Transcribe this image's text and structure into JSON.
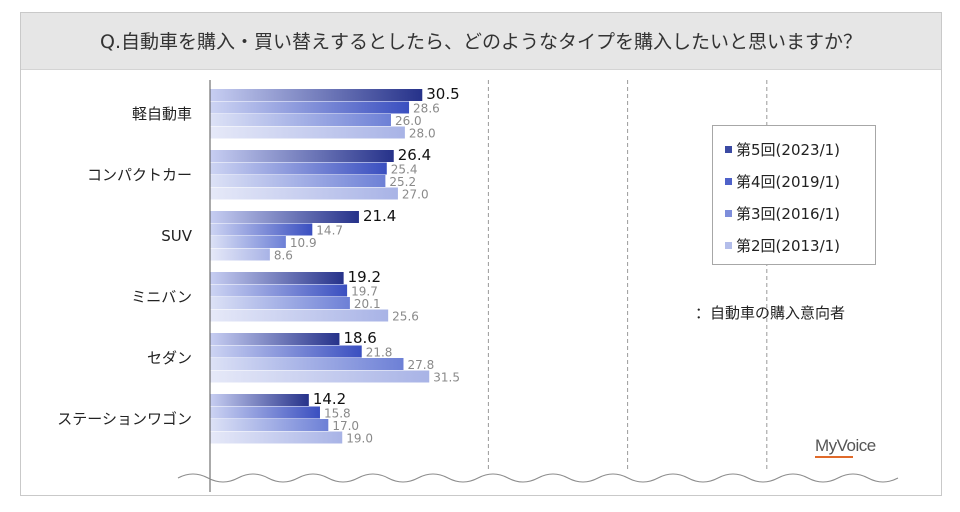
{
  "title": "Q.自動車を購入・買い替えするとしたら、どのようなタイプを購入したいと思いますか？",
  "note": "：自動車の購入意向者",
  "brand": "MyVoice",
  "chart_data": {
    "type": "bar",
    "orientation": "horizontal",
    "categories": [
      "軽自動車",
      "コンパクトカー",
      "SUV",
      "ミニバン",
      "セダン",
      "ステーションワゴン"
    ],
    "series": [
      {
        "name": "第5回(2023/1)",
        "color": "#3b4aa3",
        "values": [
          30.5,
          26.4,
          21.4,
          19.2,
          18.6,
          14.2
        ]
      },
      {
        "name": "第4回(2019/1)",
        "color": "#4f62c9",
        "values": [
          28.6,
          25.4,
          14.7,
          19.7,
          21.8,
          15.8
        ]
      },
      {
        "name": "第3回(2016/1)",
        "color": "#7e8edb",
        "values": [
          26.0,
          25.2,
          10.9,
          20.1,
          27.8,
          17.0
        ]
      },
      {
        "name": "第2回(2013/1)",
        "color": "#b3bdea",
        "values": [
          28.0,
          27.0,
          8.6,
          25.6,
          31.5,
          19.0
        ]
      }
    ],
    "xlim": [
      0,
      100
    ],
    "grid": true,
    "legend_position": "right"
  }
}
